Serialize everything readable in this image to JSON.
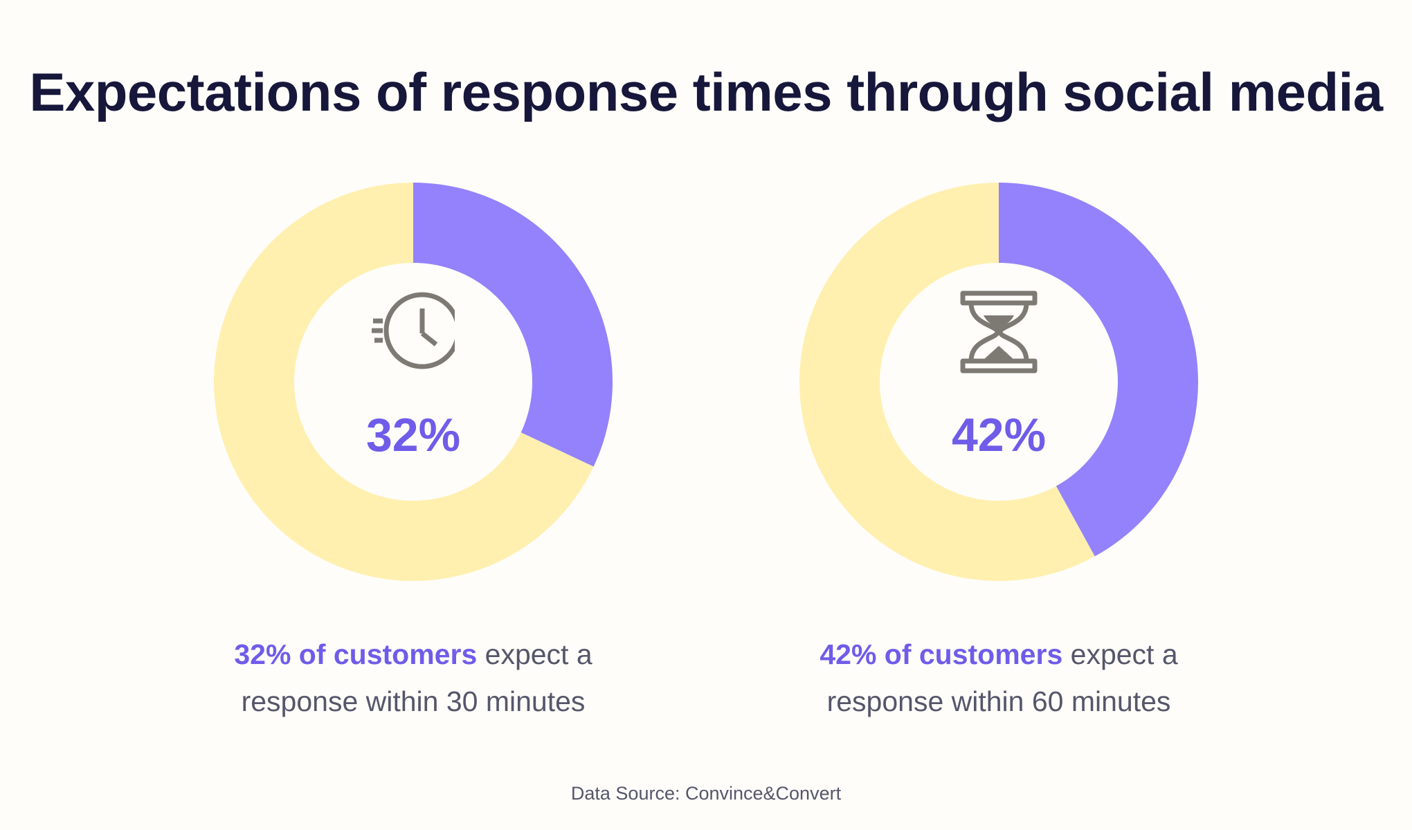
{
  "title": "Expectations of response times through social media",
  "colors": {
    "highlight": "#9382fc",
    "remainder": "#fff0b0",
    "accent_text": "#6f5ce9",
    "title_text": "#16173a",
    "body_text": "#55566a",
    "icon": "#7d7a74"
  },
  "chart_data": [
    {
      "type": "pie",
      "style": "donut",
      "slices": [
        {
          "value": 32,
          "color": "#9382fc"
        },
        {
          "value": 68,
          "color": "#fff0b0"
        }
      ],
      "center_label": "32%",
      "icon": "clock-icon",
      "caption": {
        "highlight": "32% of customers",
        "line1_rest": " expect a",
        "line2": "response within 30 minutes"
      }
    },
    {
      "type": "pie",
      "style": "donut",
      "slices": [
        {
          "value": 42,
          "color": "#9382fc"
        },
        {
          "value": 58,
          "color": "#fff0b0"
        }
      ],
      "center_label": "42%",
      "icon": "hourglass-icon",
      "caption": {
        "highlight": "42% of customers",
        "line1_rest": " expect a",
        "line2": "response within 60 minutes"
      }
    }
  ],
  "source": "Data Source:  Convince&Convert"
}
